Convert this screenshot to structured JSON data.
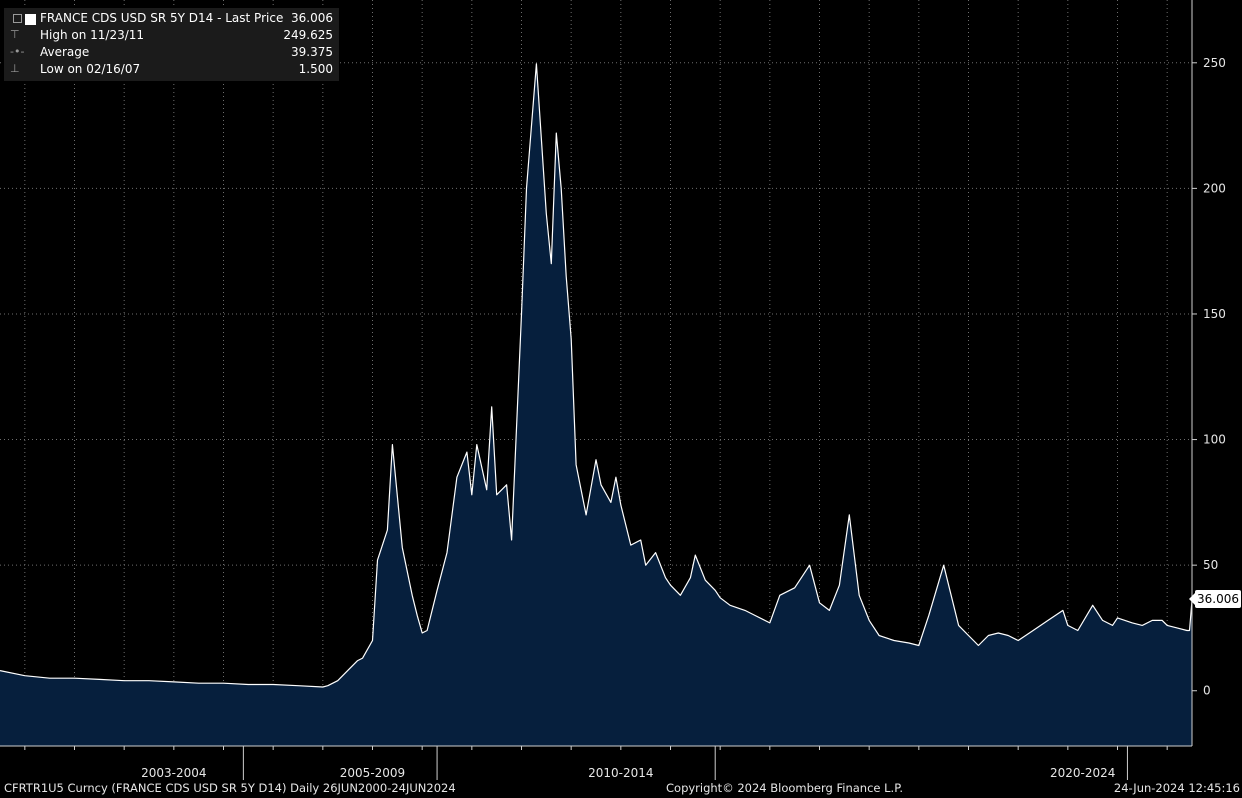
{
  "legend": {
    "title": "FRANCE CDS USD SR 5Y D14 - Last Price",
    "last_value": "36.006",
    "rows": [
      {
        "label": "High on 11/23/11",
        "value": "249.625",
        "icon": "high-marker-icon"
      },
      {
        "label": "Average",
        "value": "39.375",
        "icon": "average-marker-icon"
      },
      {
        "label": "Low on 02/16/07",
        "value": "1.500",
        "icon": "low-marker-icon"
      }
    ]
  },
  "price_tag": "36.006",
  "footer": {
    "ticker": "CFRTR1U5 Curncy (FRANCE CDS USD SR 5Y D14)  Daily 26JUN2000-24JUN2024",
    "copyright": "Copyright© 2024 Bloomberg Finance L.P.",
    "timestamp": "24-Jun-2024 12:45:16"
  },
  "colors": {
    "background": "#000000",
    "area_fill": "#061f3d",
    "line": "#ffffff",
    "grid": "#6e6e6e"
  },
  "chart_data": {
    "type": "area",
    "title": "FRANCE CDS USD SR 5Y D14 - Last Price",
    "ylim": [
      -22,
      275
    ],
    "y_ticks": [
      0,
      50,
      100,
      150,
      200,
      250
    ],
    "y_tick_labels": [
      "0",
      "50",
      "100",
      "150",
      "200",
      "250"
    ],
    "x_range": [
      2000.5,
      2024.5
    ],
    "x_group_labels": [
      {
        "label": "2003-2004",
        "center": 2004.0
      },
      {
        "label": "2005-2009",
        "center": 2008.0
      },
      {
        "label": "2010-2014",
        "center": 2013.0
      },
      {
        "label": "2020-2024",
        "center": 2022.3
      }
    ],
    "x_separators": [
      2005.4,
      2009.3,
      2014.9,
      2023.2
    ],
    "grid": true,
    "y_axis_position": "right",
    "series": [
      {
        "name": "FRANCE CDS USD SR 5Y D14",
        "x": [
          2000.5,
          2001.0,
          2001.5,
          2002.0,
          2002.5,
          2003.0,
          2003.5,
          2004.0,
          2004.5,
          2005.0,
          2005.5,
          2006.0,
          2006.5,
          2007.0,
          2007.1,
          2007.3,
          2007.5,
          2007.7,
          2007.8,
          2008.0,
          2008.1,
          2008.3,
          2008.4,
          2008.6,
          2008.8,
          2008.9,
          2009.0,
          2009.1,
          2009.3,
          2009.5,
          2009.7,
          2009.9,
          2010.0,
          2010.1,
          2010.3,
          2010.4,
          2010.5,
          2010.7,
          2010.8,
          2011.0,
          2011.1,
          2011.3,
          2011.5,
          2011.6,
          2011.7,
          2011.8,
          2011.9,
          2012.0,
          2012.1,
          2012.3,
          2012.5,
          2012.6,
          2012.8,
          2012.9,
          2013.0,
          2013.2,
          2013.4,
          2013.5,
          2013.7,
          2013.9,
          2014.0,
          2014.2,
          2014.4,
          2014.5,
          2014.7,
          2014.9,
          2015.0,
          2015.2,
          2015.5,
          2015.7,
          2016.0,
          2016.2,
          2016.5,
          2016.8,
          2017.0,
          2017.2,
          2017.4,
          2017.6,
          2017.8,
          2018.0,
          2018.2,
          2018.5,
          2018.8,
          2019.0,
          2019.2,
          2019.5,
          2019.8,
          2020.0,
          2020.1,
          2020.2,
          2020.4,
          2020.6,
          2020.8,
          2021.0,
          2021.3,
          2021.6,
          2021.9,
          2022.0,
          2022.2,
          2022.5,
          2022.7,
          2022.9,
          2023.0,
          2023.3,
          2023.5,
          2023.7,
          2023.9,
          2024.0,
          2024.2,
          2024.4,
          2024.45,
          2024.5
        ],
        "y": [
          8,
          6,
          5,
          5,
          4.5,
          4,
          4,
          3.5,
          3,
          3,
          2.5,
          2.5,
          2,
          1.5,
          2,
          4,
          8,
          12,
          13,
          20,
          52,
          64,
          98,
          57,
          38,
          30,
          23,
          24,
          40,
          55,
          85,
          95,
          78,
          98,
          80,
          113,
          78,
          82,
          60,
          150,
          200,
          249.6,
          190,
          170,
          222,
          200,
          165,
          140,
          90,
          70,
          92,
          82,
          75,
          85,
          74,
          58,
          60,
          50,
          55,
          45,
          42,
          38,
          45,
          54,
          44,
          40,
          37,
          34,
          32,
          30,
          27,
          38,
          41,
          50,
          35,
          32,
          42,
          70,
          38,
          28,
          22,
          20,
          19,
          18,
          30,
          50,
          26,
          22,
          20,
          18,
          22,
          23,
          22,
          20,
          24,
          28,
          32,
          26,
          24,
          34,
          28,
          26,
          29,
          27,
          26,
          28,
          28,
          26,
          25,
          24,
          24,
          36.006
        ]
      }
    ]
  }
}
